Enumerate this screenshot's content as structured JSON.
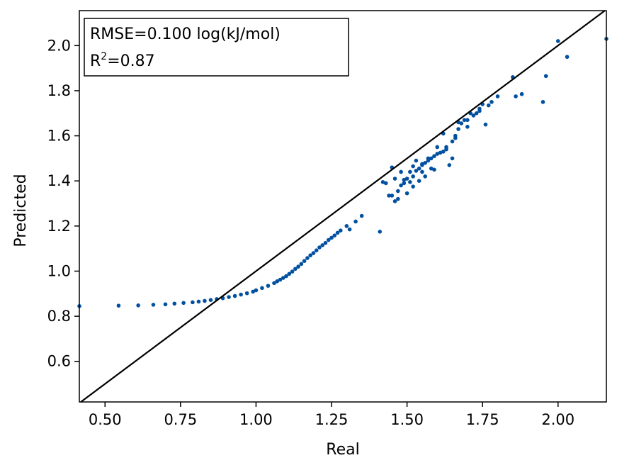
{
  "chart_data": {
    "type": "scatter",
    "title": "",
    "xlabel": "Real",
    "ylabel": "Predicted",
    "xlim": [
      0.415,
      2.16
    ],
    "ylim": [
      0.42,
      2.155
    ],
    "x_ticks": [
      0.5,
      0.75,
      1.0,
      1.25,
      1.5,
      1.75,
      2.0
    ],
    "x_tick_labels": [
      "0.50",
      "0.75",
      "1.00",
      "1.25",
      "1.50",
      "1.75",
      "2.00"
    ],
    "y_ticks": [
      0.6,
      0.8,
      1.0,
      1.2,
      1.4,
      1.6,
      1.8,
      2.0
    ],
    "y_tick_labels": [
      "0.6",
      "0.8",
      "1.0",
      "1.2",
      "1.4",
      "1.6",
      "1.8",
      "2.0"
    ],
    "grid": false,
    "annotation": {
      "rmse_text": "RMSE=0.100 log(kJ/mol)",
      "r2_prefix": "R",
      "r2_sup": "2",
      "r2_value": "=0.87",
      "position": "top-left"
    },
    "identity_line": {
      "from": [
        0.415,
        0.415
      ],
      "to": [
        2.16,
        2.16
      ],
      "color": "#000000"
    },
    "series": [
      {
        "name": "predictions",
        "color": "#0250a0",
        "points": [
          [
            0.415,
            0.845
          ],
          [
            0.545,
            0.847
          ],
          [
            0.61,
            0.848
          ],
          [
            0.66,
            0.851
          ],
          [
            0.7,
            0.853
          ],
          [
            0.73,
            0.856
          ],
          [
            0.76,
            0.859
          ],
          [
            0.79,
            0.862
          ],
          [
            0.81,
            0.865
          ],
          [
            0.83,
            0.868
          ],
          [
            0.85,
            0.872
          ],
          [
            0.87,
            0.876
          ],
          [
            0.89,
            0.88
          ],
          [
            0.91,
            0.885
          ],
          [
            0.93,
            0.89
          ],
          [
            0.95,
            0.896
          ],
          [
            0.97,
            0.902
          ],
          [
            0.99,
            0.909
          ],
          [
            1.0,
            0.915
          ],
          [
            1.02,
            0.925
          ],
          [
            1.04,
            0.935
          ],
          [
            1.06,
            0.947
          ],
          [
            1.07,
            0.955
          ],
          [
            1.08,
            0.962
          ],
          [
            1.09,
            0.97
          ],
          [
            1.1,
            0.978
          ],
          [
            1.11,
            0.988
          ],
          [
            1.12,
            0.998
          ],
          [
            1.13,
            1.01
          ],
          [
            1.14,
            1.02
          ],
          [
            1.15,
            1.032
          ],
          [
            1.16,
            1.045
          ],
          [
            1.17,
            1.058
          ],
          [
            1.18,
            1.07
          ],
          [
            1.19,
            1.08
          ],
          [
            1.2,
            1.092
          ],
          [
            1.21,
            1.105
          ],
          [
            1.22,
            1.115
          ],
          [
            1.23,
            1.125
          ],
          [
            1.24,
            1.138
          ],
          [
            1.25,
            1.148
          ],
          [
            1.26,
            1.158
          ],
          [
            1.27,
            1.17
          ],
          [
            1.28,
            1.18
          ],
          [
            1.3,
            1.2
          ],
          [
            1.31,
            1.185
          ],
          [
            1.33,
            1.22
          ],
          [
            1.35,
            1.245
          ],
          [
            1.41,
            1.175
          ],
          [
            1.42,
            1.395
          ],
          [
            1.44,
            1.335
          ],
          [
            1.46,
            1.41
          ],
          [
            1.47,
            1.355
          ],
          [
            1.48,
            1.38
          ],
          [
            1.49,
            1.39
          ],
          [
            1.5,
            1.41
          ],
          [
            1.51,
            1.395
          ],
          [
            1.52,
            1.42
          ],
          [
            1.53,
            1.445
          ],
          [
            1.54,
            1.455
          ],
          [
            1.55,
            1.47
          ],
          [
            1.56,
            1.48
          ],
          [
            1.57,
            1.49
          ],
          [
            1.58,
            1.5
          ],
          [
            1.59,
            1.45
          ],
          [
            1.6,
            1.52
          ],
          [
            1.62,
            1.53
          ],
          [
            1.63,
            1.55
          ],
          [
            1.64,
            1.47
          ],
          [
            1.65,
            1.575
          ],
          [
            1.66,
            1.6
          ],
          [
            1.67,
            1.63
          ],
          [
            1.68,
            1.655
          ],
          [
            1.7,
            1.67
          ],
          [
            1.72,
            1.69
          ],
          [
            1.73,
            1.7
          ],
          [
            1.74,
            1.72
          ],
          [
            1.75,
            1.74
          ],
          [
            1.76,
            1.65
          ],
          [
            1.78,
            1.75
          ],
          [
            1.8,
            1.775
          ],
          [
            1.85,
            1.86
          ],
          [
            1.86,
            1.775
          ],
          [
            1.88,
            1.785
          ],
          [
            1.95,
            1.75
          ],
          [
            1.96,
            1.865
          ],
          [
            2.0,
            2.02
          ],
          [
            2.03,
            1.95
          ],
          [
            2.16,
            2.03
          ],
          [
            1.45,
            1.46
          ],
          [
            1.48,
            1.44
          ],
          [
            1.52,
            1.465
          ],
          [
            1.53,
            1.49
          ],
          [
            1.55,
            1.44
          ],
          [
            1.57,
            1.5
          ],
          [
            1.6,
            1.55
          ],
          [
            1.62,
            1.61
          ],
          [
            1.65,
            1.5
          ],
          [
            1.67,
            1.66
          ],
          [
            1.7,
            1.64
          ],
          [
            1.47,
            1.32
          ],
          [
            1.5,
            1.345
          ],
          [
            1.52,
            1.375
          ],
          [
            1.54,
            1.4
          ],
          [
            1.56,
            1.42
          ],
          [
            1.58,
            1.455
          ],
          [
            1.43,
            1.39
          ],
          [
            1.45,
            1.335
          ],
          [
            1.46,
            1.31
          ],
          [
            1.49,
            1.405
          ],
          [
            1.51,
            1.44
          ],
          [
            1.55,
            1.475
          ],
          [
            1.59,
            1.51
          ],
          [
            1.61,
            1.525
          ],
          [
            1.63,
            1.54
          ],
          [
            1.66,
            1.59
          ],
          [
            1.69,
            1.67
          ],
          [
            1.71,
            1.7
          ],
          [
            1.74,
            1.71
          ],
          [
            1.77,
            1.735
          ]
        ]
      }
    ]
  }
}
